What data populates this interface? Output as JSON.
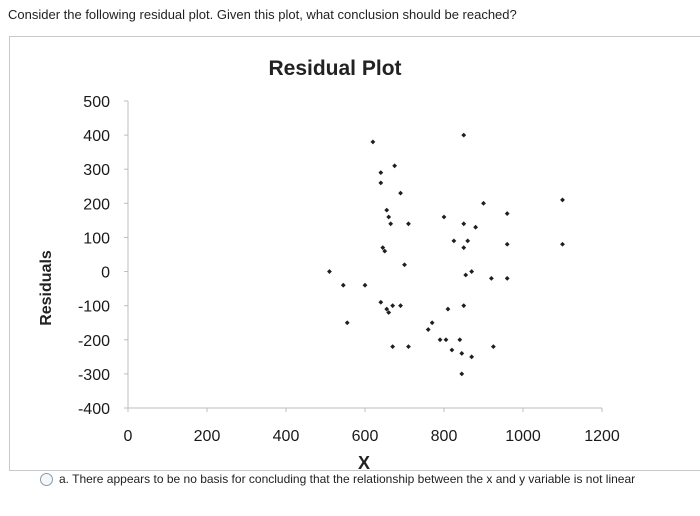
{
  "question": {
    "text": "Consider the following residual plot. Given this plot, what conclusion should be reached?"
  },
  "option_a": {
    "label": "a. There appears to be no basis for concluding that the relationship between the x and y variable is not linear"
  },
  "colors": {
    "point": "#1f1f1f",
    "axis": "#bdbdbd",
    "text": "#1a1a1a"
  },
  "chart_data": {
    "type": "scatter",
    "title": "Residual Plot",
    "xlabel": "X",
    "ylabel": "Residuals",
    "xlim": [
      0,
      1200
    ],
    "ylim": [
      -400,
      500
    ],
    "xticks": [
      0,
      200,
      400,
      600,
      800,
      1000,
      1200
    ],
    "yticks": [
      500,
      400,
      300,
      200,
      100,
      0,
      -100,
      -200,
      -300,
      -400
    ],
    "grid": false,
    "legend": "none",
    "x": [
      620,
      640,
      640,
      655,
      660,
      665,
      675,
      690,
      710,
      645,
      650,
      700,
      850,
      900,
      960,
      1100,
      800,
      850,
      880,
      825,
      860,
      850,
      960,
      1100,
      870,
      855,
      920,
      960,
      510,
      600,
      545,
      640,
      670,
      690,
      655,
      660,
      810,
      850,
      770,
      555,
      760,
      805,
      790,
      840,
      670,
      710,
      820,
      845,
      870,
      845,
      925
    ],
    "y": [
      380,
      290,
      260,
      180,
      160,
      140,
      310,
      230,
      140,
      70,
      60,
      20,
      400,
      200,
      170,
      210,
      160,
      140,
      130,
      90,
      90,
      70,
      80,
      80,
      0,
      -10,
      -20,
      -20,
      0,
      -40,
      -40,
      -90,
      -100,
      -100,
      -110,
      -120,
      -110,
      -100,
      -150,
      -150,
      -170,
      -200,
      -200,
      -200,
      -220,
      -220,
      -230,
      -240,
      -250,
      -300,
      -220
    ]
  }
}
